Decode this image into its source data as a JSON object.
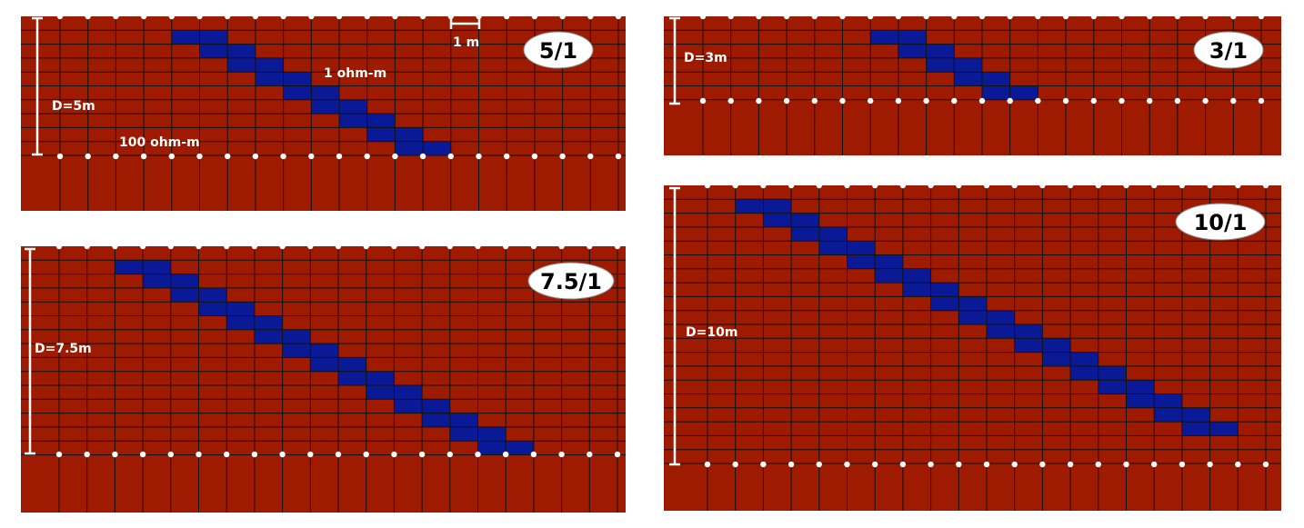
{
  "colors": {
    "background_rock": "#9e1a00",
    "conductive_cell": "#0a1a96",
    "grid_line": "#111111",
    "electrode": "#ffffff",
    "label_text": "#ffffff",
    "badge_fill": "#ffffff",
    "badge_text": "#000000"
  },
  "annotations": {
    "cell_size_label": "1 m",
    "conductor_resistivity_label": "1 ohm-m",
    "host_resistivity_label": "100 ohm-m"
  },
  "panels": [
    {
      "id": "panel-5-1",
      "ratio_label": "5/1",
      "depth_label": "D=5m"
    },
    {
      "id": "panel-3-1",
      "ratio_label": "3/1",
      "depth_label": "D=3m"
    },
    {
      "id": "panel-7-5-1",
      "ratio_label": "7.5/1",
      "depth_label": "D=7.5m"
    },
    {
      "id": "panel-10-1",
      "ratio_label": "10/1",
      "depth_label": "D=10m"
    }
  ]
}
